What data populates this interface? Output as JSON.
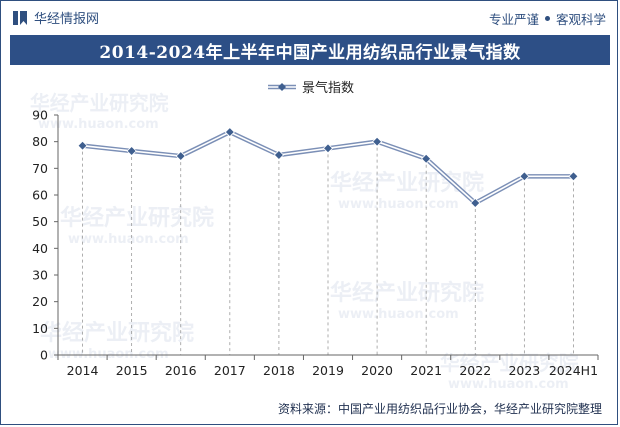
{
  "header": {
    "brand": "华经情报网",
    "tag_left": "专业严谨",
    "tag_right": "客观科学",
    "logo_icon": "bookmark-icon"
  },
  "title": "2014-2024年上半年中国产业用纺织品行业景气指数",
  "footer": {
    "source": "资料来源：中国产业用纺织品行业协会，华经产业研究院整理"
  },
  "watermark": {
    "text": "华经产业研究院",
    "url": "www.huaon.com"
  },
  "colors": {
    "title_bg": "#2d4f86",
    "line": "#7b8fb6",
    "marker": "#3f5f8f",
    "axis": "#555555"
  },
  "chart_data": {
    "type": "line",
    "categories": [
      "2014",
      "2015",
      "2016",
      "2017",
      "2018",
      "2019",
      "2020",
      "2021",
      "2022",
      "2023",
      "2024H1"
    ],
    "series": [
      {
        "name": "景气指数",
        "values": [
          78.5,
          76.5,
          74.6,
          83.6,
          75,
          77.5,
          80,
          73.6,
          57,
          67,
          67
        ]
      }
    ],
    "ylim": [
      0,
      90
    ],
    "yticks": [
      0,
      10,
      20,
      30,
      40,
      50,
      60,
      70,
      80,
      90
    ],
    "legend": "top-center",
    "grid": "vertical-dashed"
  }
}
